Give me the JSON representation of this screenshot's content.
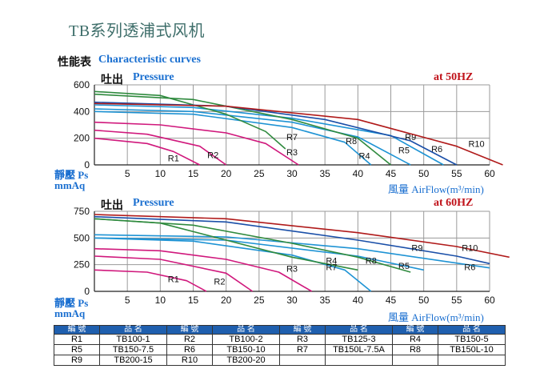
{
  "title": "TB系列透浦式风机",
  "subtitle_cn": "性能表",
  "subtitle_en": "Characteristic curves",
  "pressure_cn": "吐出",
  "pressure_en": "Pressure",
  "y_unit_line1": "靜壓 Ps",
  "y_unit_line2": "mmAq",
  "x_unit": "風量 AirFlow(m³/min)",
  "legend_header": {
    "code": "編 號",
    "model": "品 名"
  },
  "legend_rows": [
    [
      {
        "code": "R1",
        "model": "TB100-1"
      },
      {
        "code": "R2",
        "model": "TB100-2"
      },
      {
        "code": "R3",
        "model": "TB125-3"
      },
      {
        "code": "R4",
        "model": "TB150-5"
      }
    ],
    [
      {
        "code": "R5",
        "model": "TB150-7.5"
      },
      {
        "code": "R6",
        "model": "TB150-10"
      },
      {
        "code": "R7",
        "model": "TB150L-7.5A"
      },
      {
        "code": "R8",
        "model": "TB150L-10"
      }
    ],
    [
      {
        "code": "R9",
        "model": "TB200-15"
      },
      {
        "code": "R10",
        "model": "TB200-20"
      },
      {
        "code": "",
        "model": ""
      },
      {
        "code": "",
        "model": ""
      }
    ]
  ],
  "chart_data": [
    {
      "type": "line",
      "freq_label": "at 50HZ",
      "xlim": [
        0,
        60
      ],
      "ylim": [
        0,
        600
      ],
      "xticks": [
        5,
        10,
        15,
        20,
        25,
        30,
        35,
        40,
        45,
        50,
        55,
        60
      ],
      "yticks": [
        0,
        200,
        400,
        600
      ],
      "series": [
        {
          "name": "R1",
          "color": "#d0187c",
          "x": [
            0,
            8,
            12,
            16
          ],
          "y": [
            200,
            160,
            100,
            0
          ],
          "label_at": [
            12,
            50
          ]
        },
        {
          "name": "R2",
          "color": "#d0187c",
          "x": [
            0,
            8,
            16,
            20
          ],
          "y": [
            260,
            230,
            140,
            0
          ],
          "label_at": [
            18,
            75
          ]
        },
        {
          "name": "R3",
          "color": "#d0187c",
          "x": [
            0,
            10,
            20,
            26,
            31
          ],
          "y": [
            320,
            300,
            240,
            160,
            0
          ],
          "label_at": [
            30,
            95
          ]
        },
        {
          "name": "R4",
          "color": "#1e93d4",
          "x": [
            0,
            15,
            30,
            38,
            42
          ],
          "y": [
            400,
            380,
            280,
            170,
            0
          ],
          "label_at": [
            41,
            70
          ]
        },
        {
          "name": "R5",
          "color": "#1e93d4",
          "x": [
            0,
            15,
            30,
            40,
            48
          ],
          "y": [
            420,
            400,
            320,
            210,
            0
          ],
          "label_at": [
            47,
            110
          ]
        },
        {
          "name": "R6",
          "color": "#1e93d4",
          "x": [
            0,
            15,
            30,
            45,
            53
          ],
          "y": [
            450,
            430,
            350,
            220,
            0
          ],
          "label_at": [
            52,
            120
          ]
        },
        {
          "name": "R7",
          "color": "#2f8a3e",
          "x": [
            0,
            10,
            20,
            26,
            29
          ],
          "y": [
            550,
            520,
            380,
            250,
            120
          ],
          "label_at": [
            30,
            210
          ]
        },
        {
          "name": "R8",
          "color": "#2f8a3e",
          "x": [
            0,
            15,
            30,
            40,
            45
          ],
          "y": [
            530,
            490,
            340,
            200,
            0
          ],
          "label_at": [
            39,
            180
          ]
        },
        {
          "name": "R9",
          "color": "#1a4fa8",
          "x": [
            0,
            20,
            35,
            48,
            55
          ],
          "y": [
            470,
            440,
            340,
            180,
            0
          ],
          "label_at": [
            48,
            210
          ]
        },
        {
          "name": "R10",
          "color": "#b01a1a",
          "x": [
            0,
            20,
            40,
            55,
            62
          ],
          "y": [
            460,
            440,
            340,
            140,
            0
          ],
          "label_at": [
            58,
            160
          ]
        }
      ]
    },
    {
      "type": "line",
      "freq_label": "at 60HZ",
      "xlim": [
        0,
        60
      ],
      "ylim": [
        0,
        750
      ],
      "xticks": [
        5,
        10,
        15,
        20,
        25,
        30,
        35,
        40,
        45,
        50,
        55,
        60
      ],
      "yticks": [
        0,
        250,
        500,
        750
      ],
      "series": [
        {
          "name": "R1",
          "color": "#d0187c",
          "x": [
            0,
            8,
            14,
            17
          ],
          "y": [
            200,
            180,
            100,
            0
          ],
          "label_at": [
            12,
            115
          ]
        },
        {
          "name": "R2",
          "color": "#d0187c",
          "x": [
            0,
            10,
            20,
            24
          ],
          "y": [
            330,
            300,
            170,
            0
          ],
          "label_at": [
            19,
            95
          ]
        },
        {
          "name": "R3",
          "color": "#d0187c",
          "x": [
            0,
            10,
            20,
            28,
            33
          ],
          "y": [
            400,
            380,
            300,
            180,
            0
          ],
          "label_at": [
            30,
            215
          ]
        },
        {
          "name": "R4",
          "color": "#1e93d4",
          "x": [
            0,
            15,
            30,
            38,
            42
          ],
          "y": [
            500,
            470,
            340,
            200,
            0
          ],
          "label_at": [
            36,
            290
          ]
        },
        {
          "name": "R5",
          "color": "#1e93d4",
          "x": [
            0,
            20,
            40,
            50
          ],
          "y": [
            500,
            480,
            330,
            200
          ],
          "label_at": [
            47,
            240
          ]
        },
        {
          "name": "R6",
          "color": "#1e93d4",
          "x": [
            0,
            20,
            40,
            60
          ],
          "y": [
            530,
            510,
            400,
            220
          ],
          "label_at": [
            57,
            230
          ]
        },
        {
          "name": "R7",
          "color": "#2f8a3e",
          "x": [
            0,
            10,
            20,
            30,
            40
          ],
          "y": [
            680,
            640,
            480,
            320,
            200
          ],
          "label_at": [
            36,
            230
          ]
        },
        {
          "name": "R8",
          "color": "#2f8a3e",
          "x": [
            0,
            15,
            30,
            40,
            48
          ],
          "y": [
            680,
            620,
            450,
            320,
            180
          ],
          "label_at": [
            42,
            290
          ]
        },
        {
          "name": "R9",
          "color": "#1a4fa8",
          "x": [
            0,
            20,
            40,
            55,
            60
          ],
          "y": [
            700,
            650,
            480,
            330,
            260
          ],
          "label_at": [
            49,
            410
          ]
        },
        {
          "name": "R10",
          "color": "#b01a1a",
          "x": [
            0,
            20,
            40,
            55,
            63
          ],
          "y": [
            720,
            680,
            550,
            420,
            320
          ],
          "label_at": [
            57,
            410
          ]
        }
      ]
    }
  ]
}
